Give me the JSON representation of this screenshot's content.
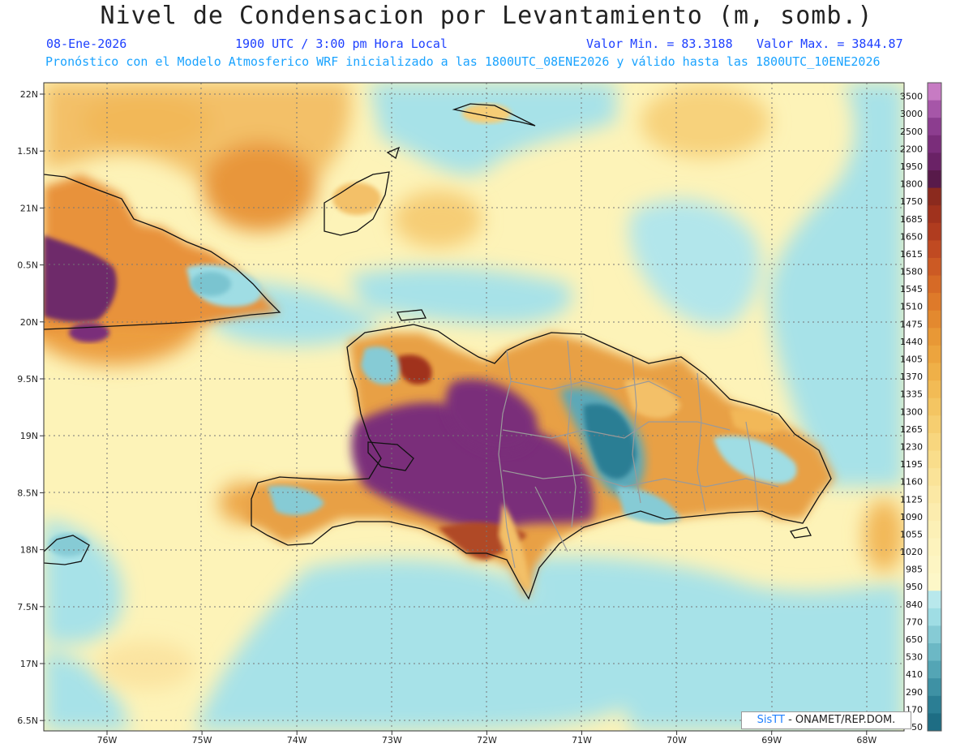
{
  "title": "Nivel de Condensacion por Levantamiento (m, somb.)",
  "header": {
    "date": "08-Ene-2026",
    "time": "1900 UTC / 3:00 pm Hora Local",
    "min_label": "Valor Min. = 83.3188",
    "max_label": "Valor Max. = 3844.87",
    "model_note": "Pronóstico con el Modelo Atmosferico WRF inicializado a las 1800UTC_08ENE2026 y válido hasta las  1800UTC_10ENE2026"
  },
  "axes": {
    "lat_labels": [
      "22N",
      "1.5N",
      "21N",
      "0.5N",
      "20N",
      "9.5N",
      "19N",
      "8.5N",
      "18N",
      "7.5N",
      "17N",
      "6.5N"
    ],
    "lon_labels": [
      "76W",
      "75W",
      "74W",
      "73W",
      "72W",
      "71W",
      "70W",
      "69W",
      "68W"
    ]
  },
  "colorbar": {
    "levels": [
      "3500",
      "3000",
      "2500",
      "2200",
      "1950",
      "1800",
      "1750",
      "1685",
      "1650",
      "1615",
      "1580",
      "1545",
      "1510",
      "1475",
      "1440",
      "1405",
      "1370",
      "1335",
      "1300",
      "1265",
      "1230",
      "1195",
      "1160",
      "1125",
      "1090",
      "1055",
      "1020",
      "985",
      "950",
      "840",
      "770",
      "650",
      "530",
      "410",
      "290",
      "170",
      "50"
    ],
    "colors": [
      "#c77bc3",
      "#a656a8",
      "#8c3d8f",
      "#7a2d7a",
      "#6a2266",
      "#581a4a",
      "#8b2a1e",
      "#a0321d",
      "#b03c1f",
      "#c04a22",
      "#cc5a24",
      "#d66a26",
      "#de7a2a",
      "#e3892f",
      "#e89836",
      "#eca43e",
      "#efb048",
      "#f2bb55",
      "#f4c562",
      "#f6ce70",
      "#f8d67e",
      "#f9dd8b",
      "#fae398",
      "#fbe8a4",
      "#fcecae",
      "#fcf0b6",
      "#fdf3bd",
      "#fdf5c3",
      "#fdf7c8",
      "#b8e8ec",
      "#9fdde4",
      "#86cbd5",
      "#6cb8c5",
      "#54a5b5",
      "#3e91a4",
      "#2b7e94",
      "#1e6d84"
    ]
  },
  "credit": {
    "brand": "SisTT",
    "org": " - ONAMET/REP.DOM."
  },
  "colors": {
    "sea_bg": "#fdf3b8",
    "title": "#222222",
    "header_blue": "#1e40ff",
    "header_cyan": "#1aa3ff"
  }
}
